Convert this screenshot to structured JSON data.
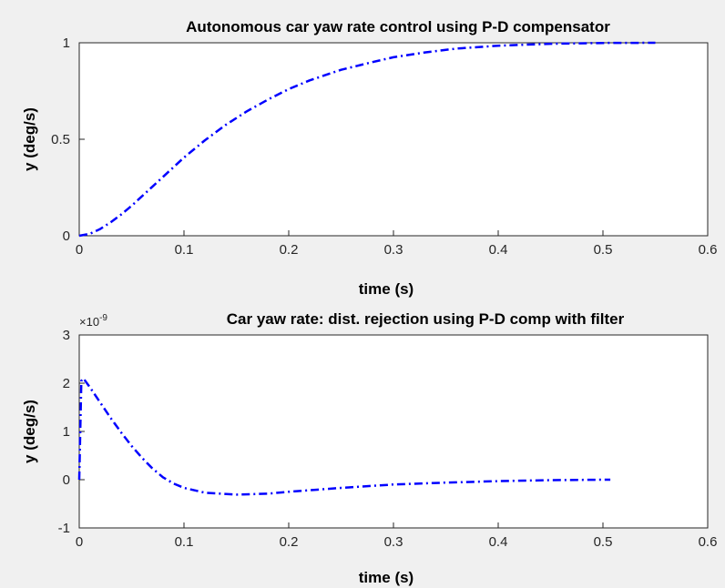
{
  "figure": {
    "background": "#f0f0f0",
    "axes_background": "#ffffff",
    "grid_color": "#dcdcdc",
    "line_color": "#0000ff"
  },
  "chart_data": [
    {
      "type": "line",
      "title": "Autonomous car yaw rate control using P-D compensator",
      "xlabel": "time (s)",
      "ylabel": "y (deg/s)",
      "xlim": [
        0,
        0.6
      ],
      "ylim": [
        0,
        1
      ],
      "xticks": [
        0,
        0.1,
        0.2,
        0.3,
        0.4,
        0.5,
        0.6
      ],
      "yticks": [
        0,
        0.5,
        1
      ],
      "xtick_labels": [
        "0",
        "0.1",
        "0.2",
        "0.3",
        "0.4",
        "0.5",
        "0.6"
      ],
      "ytick_labels": [
        "0",
        "0.5",
        "1"
      ],
      "grid": true,
      "series": [
        {
          "color": "#0000ff",
          "line_style": "dash-dot",
          "x": [
            0,
            0.01,
            0.02,
            0.03,
            0.04,
            0.05,
            0.06,
            0.07,
            0.08,
            0.09,
            0.1,
            0.12,
            0.14,
            0.16,
            0.18,
            0.2,
            0.22,
            0.25,
            0.28,
            0.3,
            0.33,
            0.36,
            0.4,
            0.45,
            0.5,
            0.55
          ],
          "y": [
            0,
            0.01,
            0.035,
            0.07,
            0.11,
            0.155,
            0.205,
            0.255,
            0.305,
            0.355,
            0.405,
            0.495,
            0.575,
            0.645,
            0.705,
            0.76,
            0.805,
            0.86,
            0.9,
            0.925,
            0.95,
            0.97,
            0.985,
            0.995,
            0.999,
            1.0
          ]
        }
      ]
    },
    {
      "type": "line",
      "title": "Car yaw rate: dist. rejection using P-D comp with filter",
      "xlabel": "time (s)",
      "ylabel": "y (deg/s)",
      "y_exponent_label": "×10",
      "y_exponent_power": "-9",
      "xlim": [
        0,
        0.6
      ],
      "ylim": [
        -1,
        3
      ],
      "xticks": [
        0,
        0.1,
        0.2,
        0.3,
        0.4,
        0.5,
        0.6
      ],
      "yticks": [
        -1,
        0,
        1,
        2,
        3
      ],
      "xtick_labels": [
        "0",
        "0.1",
        "0.2",
        "0.3",
        "0.4",
        "0.5",
        "0.6"
      ],
      "ytick_labels": [
        "-1",
        "0",
        "1",
        "2",
        "3"
      ],
      "grid": true,
      "series": [
        {
          "color": "#0000ff",
          "line_style": "dash-dot",
          "x": [
            0,
            0.002,
            0.004,
            0.01,
            0.02,
            0.03,
            0.04,
            0.05,
            0.06,
            0.07,
            0.08,
            0.09,
            0.1,
            0.12,
            0.15,
            0.18,
            0.2,
            0.25,
            0.3,
            0.35,
            0.4,
            0.45,
            0.5,
            0.507
          ],
          "y": [
            0,
            2.05,
            2.1,
            1.92,
            1.6,
            1.28,
            0.98,
            0.7,
            0.45,
            0.23,
            0.05,
            -0.08,
            -0.17,
            -0.27,
            -0.31,
            -0.29,
            -0.25,
            -0.17,
            -0.1,
            -0.06,
            -0.03,
            -0.01,
            0.0,
            0.0
          ]
        }
      ]
    }
  ]
}
